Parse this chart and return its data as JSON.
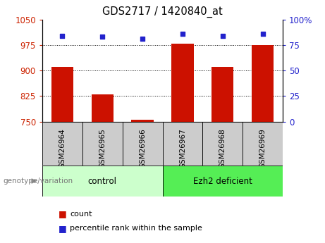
{
  "title": "GDS2717 / 1420840_at",
  "samples": [
    "GSM26964",
    "GSM26965",
    "GSM26966",
    "GSM26967",
    "GSM26968",
    "GSM26969"
  ],
  "counts": [
    910,
    830,
    755,
    978,
    910,
    975
  ],
  "percentiles": [
    84,
    83,
    81,
    86,
    84,
    86
  ],
  "ylim_left": [
    750,
    1050
  ],
  "ylim_right": [
    0,
    100
  ],
  "yticks_left": [
    750,
    825,
    900,
    975,
    1050
  ],
  "yticks_right": [
    0,
    25,
    50,
    75,
    100
  ],
  "bar_color": "#cc1100",
  "dot_color": "#2222cc",
  "grid_lines": [
    975,
    900,
    825
  ],
  "group_labels": [
    "control",
    "Ezh2 deficient"
  ],
  "group_colors": [
    "#ccffcc",
    "#55ee55"
  ],
  "group_ranges": [
    [
      0,
      3
    ],
    [
      3,
      6
    ]
  ],
  "tick_box_color": "#cccccc",
  "legend_count_color": "#cc1100",
  "legend_pct_color": "#2222cc",
  "tick_label_color": "#cc2200",
  "right_tick_color": "#2222cc",
  "background_color": "#ffffff",
  "genotype_label": "genotype/variation",
  "legend_count_text": "count",
  "legend_pct_text": "percentile rank within the sample"
}
